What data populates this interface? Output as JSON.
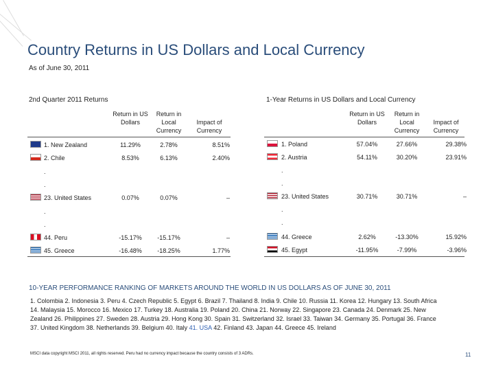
{
  "header": {
    "title": "Country Returns in US Dollars and Local Currency",
    "subtitle": "As of June 30, 2011"
  },
  "quarter_table": {
    "heading": "2nd Quarter 2011 Returns",
    "columns": [
      "Return in US Dollars",
      "Return in Local Currency",
      "Impact of Currency"
    ],
    "rows": [
      [
        "1.  New Zealand",
        "11.29%",
        "2.78%",
        "8.51%"
      ],
      [
        "2.  Chile",
        "8.53%",
        "6.13%",
        "2.40%"
      ],
      [
        "."
      ],
      [
        "."
      ],
      [
        "23. United States",
        "0.07%",
        "0.07%",
        "–"
      ],
      [
        "."
      ],
      [
        "."
      ],
      [
        "44.  Peru",
        "-15.17%",
        "-15.17%",
        "–"
      ],
      [
        "45.  Greece",
        "-16.48%",
        "-18.25%",
        "1.77%"
      ]
    ]
  },
  "year_table": {
    "heading": "1-Year Returns in US Dollars and Local Currency",
    "columns": [
      "Return in US Dollars",
      "Return in Local Currency",
      "Impact of Currency"
    ],
    "rows": [
      [
        "1.  Poland",
        "57.04%",
        "27.66%",
        "29.38%"
      ],
      [
        "2.  Austria",
        "54.11%",
        "30.20%",
        "23.91%"
      ],
      [
        "."
      ],
      [
        "."
      ],
      [
        "23.  United States",
        "30.71%",
        "30.71%",
        "–"
      ],
      [
        "."
      ],
      [
        "."
      ],
      [
        "44. Greece",
        "2.62%",
        "-13.30%",
        "15.92%"
      ],
      [
        "45. Egypt",
        "-11.95%",
        "-7.99%",
        "-3.96%"
      ]
    ]
  },
  "ranking": {
    "heading": "10-YEAR PERFORMANCE RANKING OF MARKETS AROUND THE WORLD IN US DOLLARS AS OF JUNE 30, 2011",
    "text_before": "1. Colombia 2. Indonesia 3. Peru 4. Czech Republic 5. Egypt 6. Brazil 7. Thailand 8. India 9. Chile 10. Russia 11. Korea 12. Hungary 13. South Africa 14. Malaysia 15. Morocco 16. Mexico 17. Turkey 18. Australia 19. Poland 20. China 21. Norway 22. Singapore 23. Canada 24. Denmark 25. New Zealand 26. Philippines 27. Sweden 28. Austria 29. Hong Kong 30. Spain 31. Switzerland 32. Israel 33. Taiwan 34. Germany 35. Portugal 36. France 37. United Kingdom 38. Netherlands 39. Belgium 40. Italy",
    "highlight": "41. USA",
    "text_after": "42. Finland 43. Japan 44. Greece 45. Ireland"
  },
  "footer": {
    "note": "MSCI data copyright MSCI 2011, all rights reserved. Peru had no currency impact because the country consists of 3 ADRs.",
    "page": "11"
  }
}
